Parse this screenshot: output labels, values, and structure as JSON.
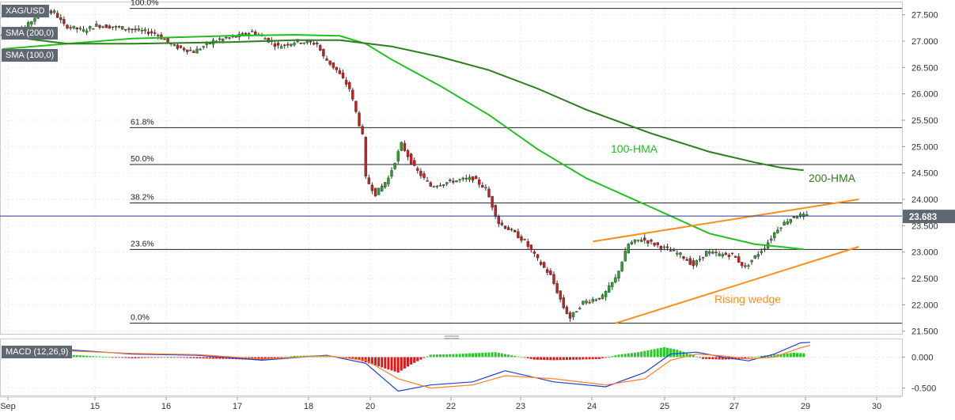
{
  "chart_data": [
    {
      "type": "candlestick",
      "symbol": "XAG/USD",
      "indicators": [
        "SMA (200,0)",
        "SMA (100,0)"
      ],
      "x_tick_labels": [
        "Sep",
        "15",
        "16",
        "17",
        "18",
        "20",
        "22",
        "23",
        "24",
        "25",
        "27",
        "29",
        "30"
      ],
      "y_tick_labels": [
        "27.500",
        "27.000",
        "26.500",
        "26.000",
        "25.500",
        "25.000",
        "24.500",
        "24.000",
        "23.500",
        "23.000",
        "22.500",
        "22.000",
        "21.500"
      ],
      "ylim": [
        21.45,
        27.75
      ],
      "y_ticks": [
        27.5,
        27.0,
        26.5,
        26.0,
        25.5,
        25.0,
        24.5,
        24.0,
        23.5,
        23.0,
        22.5,
        22.0,
        21.5
      ],
      "last_price": 23.683,
      "last_price_label": "23.683",
      "fibonacci": [
        {
          "label": "100.0%",
          "value": 27.62
        },
        {
          "label": "61.8%",
          "value": 25.36
        },
        {
          "label": "50.0%",
          "value": 24.66
        },
        {
          "label": "38.2%",
          "value": 23.93
        },
        {
          "label": "23.6%",
          "value": 23.05
        },
        {
          "label": "0.0%",
          "value": 21.65
        }
      ],
      "price_path": [
        [
          0,
          27.1
        ],
        [
          8,
          27.25
        ],
        [
          12,
          27.52
        ],
        [
          17,
          27.55
        ],
        [
          20,
          27.3
        ],
        [
          26,
          27.2
        ],
        [
          30,
          27.3
        ],
        [
          38,
          27.25
        ],
        [
          48,
          27.15
        ],
        [
          54,
          26.9
        ],
        [
          60,
          26.8
        ],
        [
          66,
          27.0
        ],
        [
          74,
          27.1
        ],
        [
          78,
          27.18
        ],
        [
          82,
          27.05
        ],
        [
          86,
          26.9
        ],
        [
          92,
          27.0
        ],
        [
          98,
          26.95
        ],
        [
          100,
          26.7
        ],
        [
          104,
          26.45
        ],
        [
          108,
          26.1
        ],
        [
          112,
          25.2
        ],
        [
          113,
          24.4
        ],
        [
          116,
          24.1
        ],
        [
          120,
          24.4
        ],
        [
          124,
          25.05
        ],
        [
          128,
          24.6
        ],
        [
          133,
          24.25
        ],
        [
          140,
          24.35
        ],
        [
          146,
          24.4
        ],
        [
          150,
          24.2
        ],
        [
          154,
          23.55
        ],
        [
          158,
          23.4
        ],
        [
          162,
          23.2
        ],
        [
          166,
          22.85
        ],
        [
          170,
          22.55
        ],
        [
          174,
          21.95
        ],
        [
          176,
          21.75
        ],
        [
          180,
          22.05
        ],
        [
          186,
          22.15
        ],
        [
          190,
          22.5
        ],
        [
          194,
          23.15
        ],
        [
          198,
          23.25
        ],
        [
          202,
          23.15
        ],
        [
          206,
          23.05
        ],
        [
          210,
          22.95
        ],
        [
          214,
          22.75
        ],
        [
          218,
          23.0
        ],
        [
          222,
          22.95
        ],
        [
          226,
          22.95
        ],
        [
          230,
          22.7
        ],
        [
          232,
          22.85
        ],
        [
          236,
          23.1
        ],
        [
          240,
          23.45
        ],
        [
          243,
          23.6
        ],
        [
          246,
          23.7
        ],
        [
          249,
          23.683
        ]
      ],
      "series": [
        {
          "name": "100-HMA",
          "color": "#21c021",
          "values": [
            [
              0,
              26.85
            ],
            [
              20,
              26.95
            ],
            [
              40,
              27.05
            ],
            [
              70,
              27.1
            ],
            [
              90,
              27.12
            ],
            [
              104,
              27.1
            ],
            [
              112,
              26.95
            ],
            [
              120,
              26.65
            ],
            [
              135,
              26.15
            ],
            [
              150,
              25.6
            ],
            [
              165,
              24.95
            ],
            [
              180,
              24.4
            ],
            [
              200,
              23.85
            ],
            [
              218,
              23.35
            ],
            [
              232,
              23.15
            ],
            [
              240,
              23.1
            ],
            [
              247,
              23.05
            ]
          ]
        },
        {
          "name": "200-HMA",
          "color": "#2e7d1e",
          "values": [
            [
              0,
              27.1
            ],
            [
              20,
              26.95
            ],
            [
              40,
              26.95
            ],
            [
              70,
              26.98
            ],
            [
              90,
              27.02
            ],
            [
              104,
              27.02
            ],
            [
              120,
              26.9
            ],
            [
              135,
              26.7
            ],
            [
              150,
              26.45
            ],
            [
              165,
              26.1
            ],
            [
              180,
              25.7
            ],
            [
              200,
              25.25
            ],
            [
              218,
              24.9
            ],
            [
              232,
              24.7
            ],
            [
              240,
              24.6
            ],
            [
              247,
              24.55
            ]
          ]
        }
      ],
      "wedge": {
        "label": "Rising wedge",
        "color": "#ff8c1a",
        "upper": [
          [
            182,
            23.2
          ],
          [
            264,
            24.0
          ]
        ],
        "lower": [
          [
            189,
            21.65
          ],
          [
            264,
            23.1
          ]
        ]
      },
      "annotations": [
        {
          "text": "100-HMA",
          "color": "#21c021"
        },
        {
          "text": "200-HMA",
          "color": "#2e7d1e"
        },
        {
          "text": "Rising wedge",
          "color": "#ff8c1a"
        }
      ]
    },
    {
      "type": "macd",
      "label": "MACD (12,26,9)",
      "y_tick_labels": [
        "0.000",
        "-0.500"
      ],
      "y_ticks": [
        0.0,
        -0.5
      ],
      "ylim": [
        -0.62,
        0.3
      ],
      "macd_line": {
        "color": "#1f3fd8",
        "values": [
          [
            0,
            0.02
          ],
          [
            20,
            0.12
          ],
          [
            40,
            0.05
          ],
          [
            60,
            0.03
          ],
          [
            80,
            -0.05
          ],
          [
            100,
            0.03
          ],
          [
            112,
            -0.1
          ],
          [
            122,
            -0.55
          ],
          [
            132,
            -0.45
          ],
          [
            145,
            -0.4
          ],
          [
            155,
            -0.22
          ],
          [
            170,
            -0.4
          ],
          [
            186,
            -0.48
          ],
          [
            198,
            -0.25
          ],
          [
            206,
            0.05
          ],
          [
            214,
            0.08
          ],
          [
            222,
            0.0
          ],
          [
            230,
            -0.06
          ],
          [
            238,
            0.05
          ],
          [
            246,
            0.23
          ],
          [
            249,
            0.24
          ]
        ]
      },
      "signal_line": {
        "color": "#ff7f27",
        "values": [
          [
            0,
            0.03
          ],
          [
            20,
            0.1
          ],
          [
            40,
            0.06
          ],
          [
            60,
            0.04
          ],
          [
            80,
            -0.03
          ],
          [
            100,
            0.02
          ],
          [
            112,
            -0.05
          ],
          [
            122,
            -0.35
          ],
          [
            132,
            -0.5
          ],
          [
            145,
            -0.45
          ],
          [
            155,
            -0.3
          ],
          [
            170,
            -0.35
          ],
          [
            186,
            -0.45
          ],
          [
            198,
            -0.35
          ],
          [
            206,
            -0.05
          ],
          [
            214,
            0.05
          ],
          [
            222,
            0.02
          ],
          [
            230,
            -0.03
          ],
          [
            238,
            0.0
          ],
          [
            246,
            0.15
          ],
          [
            249,
            0.19
          ]
        ]
      },
      "histogram": [
        [
          0,
          -0.01
        ],
        [
          10,
          0.03
        ],
        [
          20,
          0.04
        ],
        [
          30,
          0.01
        ],
        [
          40,
          -0.02
        ],
        [
          50,
          0.0
        ],
        [
          60,
          -0.02
        ],
        [
          70,
          -0.03
        ],
        [
          80,
          -0.05
        ],
        [
          90,
          0.02
        ],
        [
          100,
          0.03
        ],
        [
          110,
          -0.05
        ],
        [
          116,
          -0.15
        ],
        [
          122,
          -0.25
        ],
        [
          126,
          -0.12
        ],
        [
          132,
          0.04
        ],
        [
          140,
          0.05
        ],
        [
          148,
          0.07
        ],
        [
          152,
          0.08
        ],
        [
          158,
          0.02
        ],
        [
          164,
          -0.04
        ],
        [
          170,
          -0.05
        ],
        [
          178,
          -0.04
        ],
        [
          184,
          -0.03
        ],
        [
          190,
          0.04
        ],
        [
          196,
          0.08
        ],
        [
          200,
          0.12
        ],
        [
          204,
          0.16
        ],
        [
          208,
          0.12
        ],
        [
          212,
          0.05
        ],
        [
          216,
          -0.03
        ],
        [
          222,
          -0.04
        ],
        [
          228,
          -0.03
        ],
        [
          234,
          0.02
        ],
        [
          240,
          0.05
        ],
        [
          244,
          0.07
        ],
        [
          248,
          0.06
        ]
      ]
    }
  ]
}
